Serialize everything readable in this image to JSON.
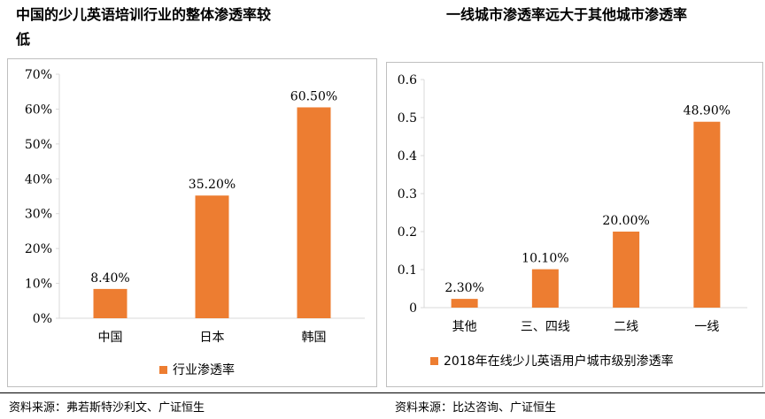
{
  "left": {
    "title_line1": "中国的少儿英语培训行业的整体渗透率较",
    "title_line2": "低",
    "legend": "行业渗透率",
    "source": "资料来源：弗若斯特沙利文、广证恒生"
  },
  "right": {
    "title": "一线城市渗透率远大于其他城市渗透率",
    "legend": "2018年在线少儿英语用户城市级别渗透率",
    "source": "资料来源：比达咨询、广证恒生"
  },
  "colors": {
    "bar": "#ed7d31",
    "axis": "#d9d9d9"
  },
  "chart_data": [
    {
      "type": "bar",
      "categories": [
        "中国",
        "日本",
        "韩国"
      ],
      "values": [
        8.4,
        35.2,
        60.5
      ],
      "value_labels": [
        "8.40%",
        "35.20%",
        "60.50%"
      ],
      "ylim": [
        0,
        70
      ],
      "yticks": [
        "0%",
        "10%",
        "20%",
        "30%",
        "40%",
        "50%",
        "60%",
        "70%"
      ],
      "series_name": "行业渗透率",
      "legend": "bottom",
      "grid": false
    },
    {
      "type": "bar",
      "categories": [
        "其他",
        "三、四线",
        "二线",
        "一线"
      ],
      "values": [
        0.023,
        0.101,
        0.2,
        0.489
      ],
      "value_labels": [
        "2.30%",
        "10.10%",
        "20.00%",
        "48.90%"
      ],
      "ylim": [
        0,
        0.6
      ],
      "yticks": [
        "0",
        "0.1",
        "0.2",
        "0.3",
        "0.4",
        "0.5",
        "0.6"
      ],
      "series_name": "2018年在线少儿英语用户城市级别渗透率",
      "legend": "bottom",
      "grid": false
    }
  ]
}
